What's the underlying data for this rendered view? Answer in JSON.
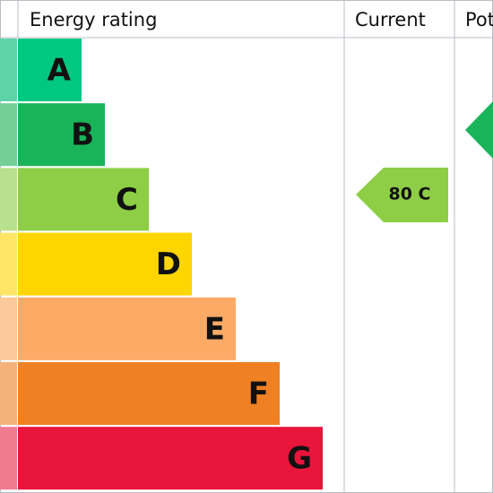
{
  "header": {
    "rating": "Energy rating",
    "current": "Current",
    "potential": "Potential"
  },
  "ratings": [
    {
      "letter": "A",
      "color": "#00c781",
      "tint": "#5fd3a8"
    },
    {
      "letter": "B",
      "color": "#19b459",
      "tint": "#73cf96"
    },
    {
      "letter": "C",
      "color": "#8dce46",
      "tint": "#b9e08e"
    },
    {
      "letter": "D",
      "color": "#ffd500",
      "tint": "#ffe566"
    },
    {
      "letter": "E",
      "color": "#fcaa65",
      "tint": "#fdc89c"
    },
    {
      "letter": "F",
      "color": "#ef8023",
      "tint": "#f4b27a"
    },
    {
      "letter": "G",
      "color": "#e9153b",
      "tint": "#f07a90"
    }
  ],
  "current": {
    "label": "80 C",
    "color": "#8dce46"
  },
  "potential": {
    "color": "#19b459"
  }
}
